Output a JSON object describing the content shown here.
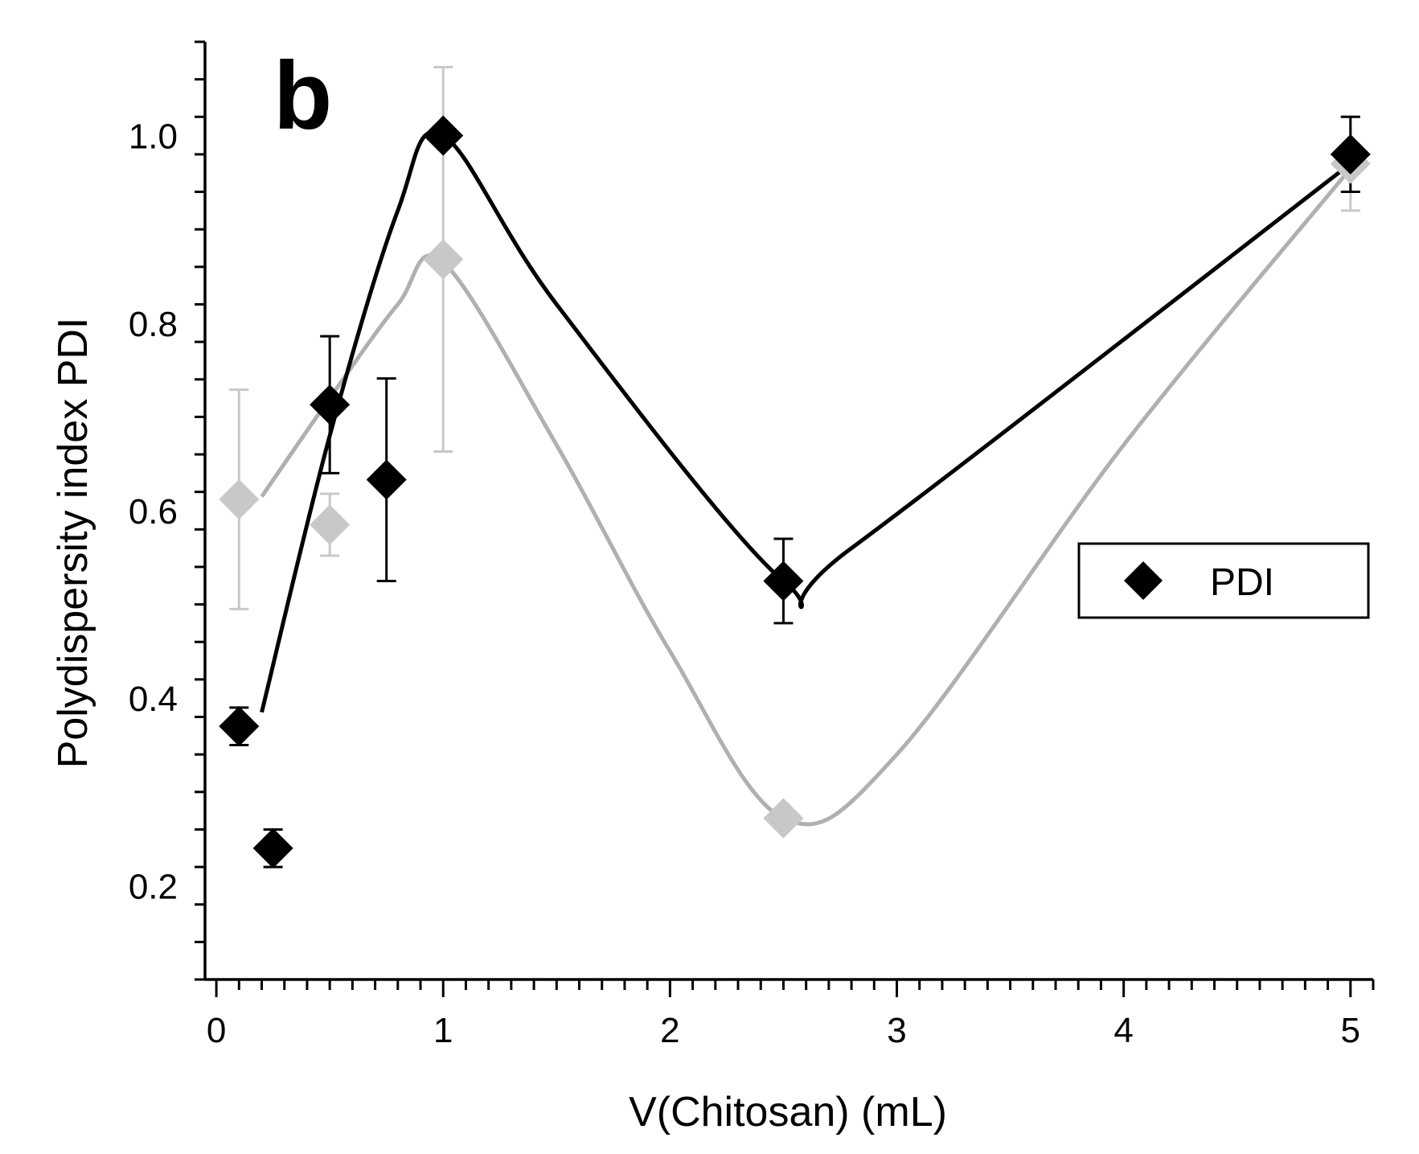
{
  "chart_data": {
    "type": "scatter",
    "panel_label": "b",
    "xlabel": "V(Chitosan) (mL)",
    "ylabel": "Polydispersity index PDI",
    "xlim": [
      -0.05,
      5.1
    ],
    "ylim": [
      0.1,
      1.1
    ],
    "x_ticks": [
      0,
      1,
      2,
      3,
      4,
      5
    ],
    "x_tick_labels": [
      "0",
      "1",
      "2",
      "3",
      "4",
      "5"
    ],
    "x_minor_step": 0.1,
    "y_ticks": [
      0.2,
      0.4,
      0.6,
      0.8,
      1.0
    ],
    "y_tick_labels": [
      "0.2",
      "0.4",
      "0.6",
      "0.8",
      "1.0"
    ],
    "y_minor_step": 0.04,
    "legend": {
      "entries": [
        "PDI"
      ],
      "position": "right"
    },
    "series": [
      {
        "name": "PDI",
        "color": "#000000",
        "marker": "diamond",
        "points": [
          {
            "x": 0.1,
            "y": 0.37,
            "err": 0.02
          },
          {
            "x": 0.25,
            "y": 0.24,
            "err": 0.02
          },
          {
            "x": 0.5,
            "y": 0.713,
            "err": 0.073
          },
          {
            "x": 0.75,
            "y": 0.633,
            "err": 0.108
          },
          {
            "x": 1.0,
            "y": 1.0,
            "err": 0.0
          },
          {
            "x": 2.5,
            "y": 0.525,
            "err": 0.045
          },
          {
            "x": 5.0,
            "y": 0.98,
            "err": 0.04
          }
        ],
        "curve": {
          "color": "#000000",
          "points": [
            [
              0.2,
              0.385
            ],
            [
              0.5,
              0.68
            ],
            [
              0.8,
              0.92
            ],
            [
              1.0,
              1.0
            ],
            [
              1.5,
              0.82
            ],
            [
              2.5,
              0.525
            ],
            [
              2.8,
              0.56
            ],
            [
              5.0,
              0.97
            ]
          ]
        }
      },
      {
        "name": "",
        "color": "#c8c8c8",
        "marker": "diamond",
        "points": [
          {
            "x": 0.1,
            "y": 0.612,
            "err": 0.117
          },
          {
            "x": 0.5,
            "y": 0.585,
            "err": 0.033
          },
          {
            "x": 1.0,
            "y": 0.868,
            "err": 0.205
          },
          {
            "x": 2.5,
            "y": 0.272,
            "err": 0.0
          },
          {
            "x": 5.0,
            "y": 0.97,
            "err": 0.05
          }
        ],
        "curve": {
          "color": "#b0b0b0",
          "points": [
            [
              0.2,
              0.615
            ],
            [
              0.5,
              0.72
            ],
            [
              0.8,
              0.82
            ],
            [
              1.0,
              0.865
            ],
            [
              1.5,
              0.67
            ],
            [
              2.0,
              0.45
            ],
            [
              2.5,
              0.272
            ],
            [
              3.0,
              0.34
            ],
            [
              4.0,
              0.67
            ],
            [
              5.0,
              0.965
            ]
          ]
        }
      }
    ]
  }
}
